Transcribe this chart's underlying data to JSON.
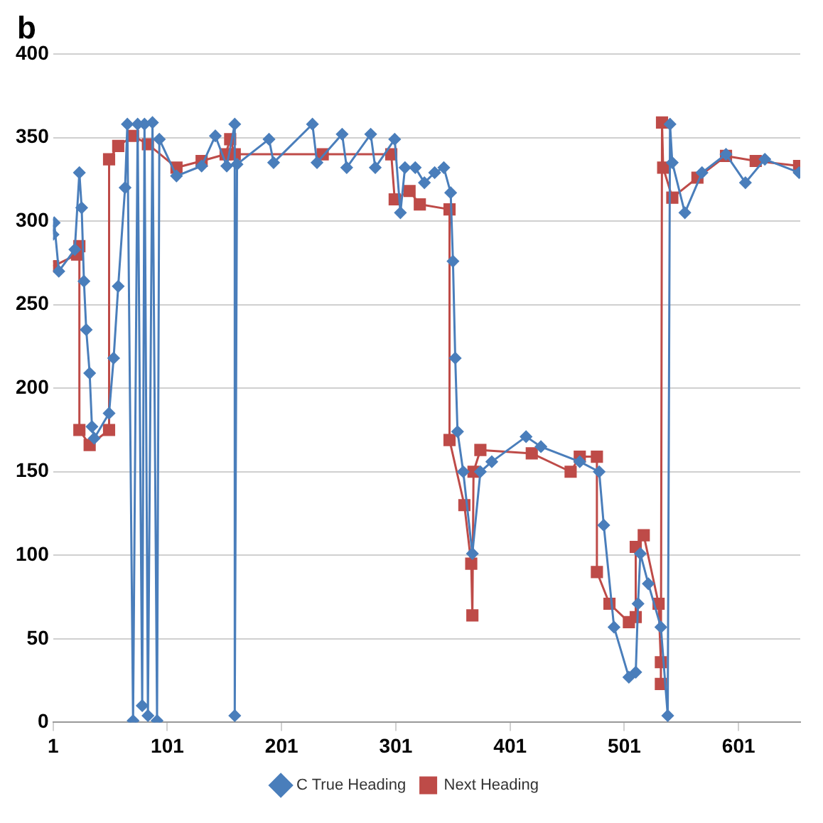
{
  "chart_data": {
    "type": "line",
    "annotations": [
      "b"
    ],
    "xlim": [
      1,
      655
    ],
    "xticks": [
      1,
      101,
      201,
      301,
      401,
      501,
      601
    ],
    "ylim": [
      0,
      400
    ],
    "yticks": [
      0,
      50,
      100,
      150,
      200,
      250,
      300,
      350,
      400
    ],
    "grid": "y",
    "legend": "bottom",
    "line_style": "solid",
    "series": [
      {
        "name": "C True Heading",
        "color": "#4a7ebb",
        "marker": "diamond",
        "x": [
          1,
          2,
          6,
          20,
          24,
          26,
          28,
          30,
          33,
          35,
          37,
          50,
          54,
          58,
          64,
          66,
          71,
          75,
          79,
          81,
          84,
          88,
          92,
          94,
          109,
          131,
          143,
          153,
          160,
          160,
          162,
          190,
          194,
          228,
          232,
          254,
          258,
          279,
          283,
          300,
          305,
          309,
          318,
          326,
          335,
          343,
          349,
          351,
          353,
          355,
          360,
          368,
          375,
          385,
          415,
          428,
          462,
          479,
          483,
          492,
          505,
          511,
          513,
          515,
          522,
          533,
          539,
          541,
          543,
          554,
          569,
          590,
          607,
          624,
          654
        ],
        "values": [
          292,
          299,
          270,
          283,
          329,
          308,
          264,
          235,
          209,
          177,
          170,
          185,
          218,
          261,
          320,
          358,
          1,
          358,
          10,
          358,
          4,
          359,
          1,
          349,
          327,
          333,
          351,
          333,
          358,
          4,
          334,
          349,
          335,
          358,
          335,
          352,
          332,
          352,
          332,
          349,
          305,
          332,
          332,
          323,
          329,
          332,
          317,
          276,
          218,
          174,
          150,
          101,
          150,
          156,
          171,
          165,
          156,
          150,
          118,
          57,
          27,
          30,
          71,
          101,
          83,
          57,
          4,
          358,
          335,
          305,
          329,
          340,
          323,
          337,
          329
        ]
      },
      {
        "name": "Next Heading",
        "color": "#be4b48",
        "marker": "square",
        "x": [
          1,
          22,
          24,
          24,
          33,
          50,
          50,
          58,
          71,
          84,
          109,
          131,
          152,
          156,
          160,
          237,
          297,
          300,
          313,
          322,
          348,
          348,
          361,
          367,
          368,
          369,
          375,
          420,
          454,
          462,
          477,
          477,
          488,
          505,
          511,
          511,
          518,
          531,
          533,
          533,
          534,
          535,
          543,
          565,
          590,
          616,
          654
        ],
        "values": [
          273,
          280,
          285,
          175,
          166,
          175,
          337,
          345,
          351,
          346,
          332,
          336,
          340,
          349,
          340,
          340,
          340,
          313,
          318,
          310,
          307,
          169,
          130,
          95,
          64,
          150,
          163,
          161,
          150,
          159,
          159,
          90,
          71,
          60,
          63,
          105,
          112,
          71,
          36,
          23,
          359,
          332,
          314,
          326,
          339,
          336,
          333
        ]
      }
    ]
  }
}
